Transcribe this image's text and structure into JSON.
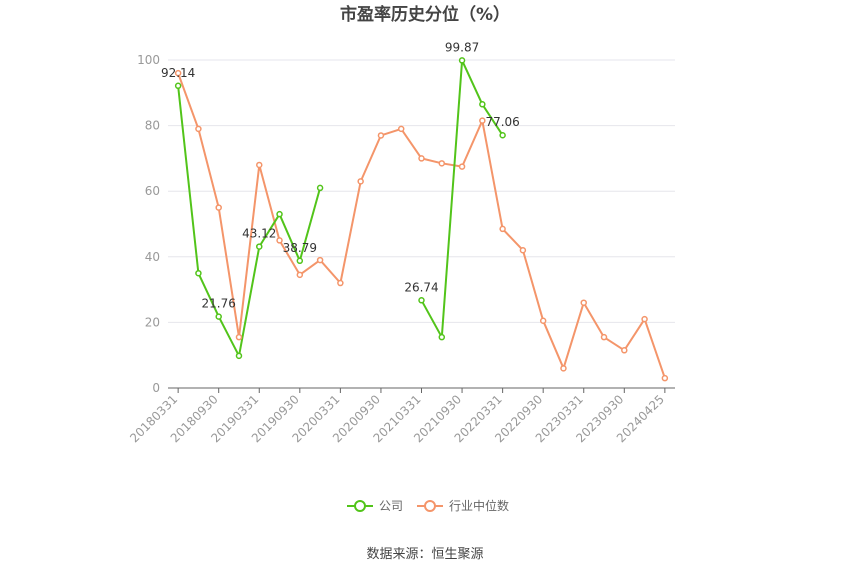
{
  "chart_data": {
    "type": "line",
    "title": "市盈率历史分位（%）",
    "ylim": [
      0,
      100
    ],
    "yticks": [
      0,
      20,
      40,
      60,
      80,
      100
    ],
    "x": [
      "20180331",
      "20180630",
      "20180930",
      "20181231",
      "20190331",
      "20190630",
      "20190930",
      "20191231",
      "20200331",
      "20200630",
      "20200930",
      "20201231",
      "20210331",
      "20210630",
      "20210930",
      "20211231",
      "20220331",
      "20220630",
      "20220930",
      "20221231",
      "20230331",
      "20230630",
      "20230930",
      "20231231",
      "20240425"
    ],
    "xtick_labels": [
      "20180331",
      "20180930",
      "20190331",
      "20190930",
      "20200331",
      "20200930",
      "20210331",
      "20210930",
      "20220331",
      "20220930",
      "20230331",
      "20230930",
      "20240425"
    ],
    "series": [
      {
        "name": "公司",
        "color": "#52c41a",
        "values": [
          92.14,
          35,
          21.76,
          9.8,
          43.12,
          53,
          38.79,
          61,
          null,
          null,
          null,
          null,
          26.74,
          15.5,
          99.87,
          86.5,
          77.06,
          null,
          null,
          null,
          null,
          null,
          null,
          null,
          null
        ]
      },
      {
        "name": "行业中位数",
        "color": "#f4956a",
        "values": [
          96,
          79,
          55,
          15.5,
          68,
          45,
          34.5,
          39,
          32,
          63,
          77,
          79,
          70,
          68.5,
          67.5,
          81.5,
          48.5,
          42,
          20.5,
          6,
          26,
          15.5,
          11.5,
          21,
          3
        ]
      }
    ],
    "data_labels": [
      {
        "series": 0,
        "index": 0,
        "text": "92.14"
      },
      {
        "series": 0,
        "index": 2,
        "text": "21.76"
      },
      {
        "series": 0,
        "index": 4,
        "text": "43.12"
      },
      {
        "series": 0,
        "index": 6,
        "text": "38.79"
      },
      {
        "series": 0,
        "index": 12,
        "text": "26.74"
      },
      {
        "series": 0,
        "index": 14,
        "text": "99.87"
      },
      {
        "series": 0,
        "index": 16,
        "text": "77.06"
      }
    ],
    "grid": true,
    "legend": "bottom-center"
  },
  "source": "数据来源：恒生聚源"
}
